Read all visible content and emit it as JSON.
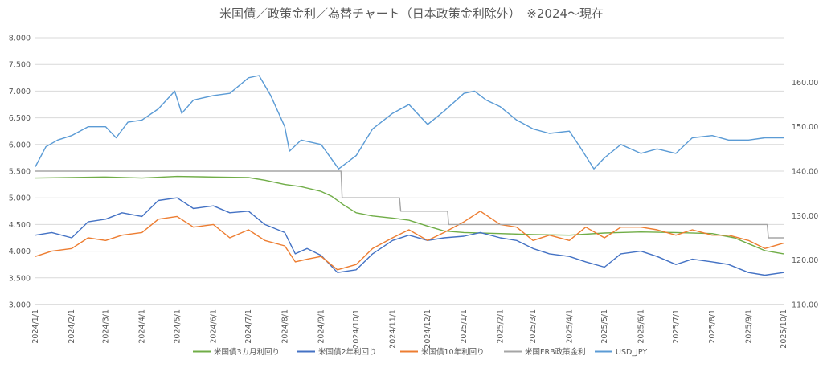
{
  "chart_data": {
    "type": "line",
    "title": "米国債／政策金利／為替チャート（日本政策金利除外）　※2024～現在",
    "x_ticks": [
      "2024/1/1",
      "2024/2/1",
      "2024/3/1",
      "2024/4/1",
      "2024/5/1",
      "2024/6/1",
      "2024/7/1",
      "2024/8/1",
      "2024/9/1",
      "2024/10/1",
      "2024/11/1",
      "2024/12/1",
      "2025/1/1",
      "2025/2/1",
      "2025/3/1",
      "2025/4/1",
      "2025/5/1",
      "2025/6/1",
      "2025/7/1",
      "2025/8/1",
      "2025/9/1",
      "2025/10/1"
    ],
    "y_left": {
      "min": 3.0,
      "max": 8.0,
      "ticks": [
        "3.000",
        "3.500",
        "4.000",
        "4.500",
        "5.000",
        "5.500",
        "6.000",
        "6.500",
        "7.000",
        "7.500",
        "8.000"
      ]
    },
    "y_right": {
      "min": 110.0,
      "max": 170.0,
      "ticks": [
        "110.00",
        "120.00",
        "130.00",
        "140.00",
        "150.00",
        "160.00"
      ]
    },
    "legend_position": "bottom",
    "series": [
      {
        "name": "米国債3カ月利回り",
        "axis": "left",
        "color": "#70ad47",
        "x": [
          "2024/1/1",
          "2024/2/1",
          "2024/3/1",
          "2024/4/1",
          "2024/5/1",
          "2024/6/1",
          "2024/7/1",
          "2024/7/15",
          "2024/8/1",
          "2024/8/15",
          "2024/9/1",
          "2024/9/10",
          "2024/9/20",
          "2024/10/1",
          "2024/10/15",
          "2024/11/1",
          "2024/11/15",
          "2024/12/1",
          "2024/12/15",
          "2025/1/1",
          "2025/2/1",
          "2025/3/1",
          "2025/4/1",
          "2025/5/1",
          "2025/6/1",
          "2025/7/1",
          "2025/8/1",
          "2025/8/20",
          "2025/9/1",
          "2025/9/15",
          "2025/10/1"
        ],
        "values": [
          5.37,
          5.38,
          5.39,
          5.37,
          5.4,
          5.39,
          5.38,
          5.33,
          5.25,
          5.21,
          5.12,
          5.03,
          4.87,
          4.72,
          4.66,
          4.62,
          4.58,
          4.47,
          4.38,
          4.35,
          4.33,
          4.31,
          4.3,
          4.34,
          4.36,
          4.35,
          4.33,
          4.25,
          4.14,
          4.01,
          3.95
        ]
      },
      {
        "name": "米国債2年利回り",
        "axis": "left",
        "color": "#4472c4",
        "x": [
          "2024/1/1",
          "2024/1/15",
          "2024/2/1",
          "2024/2/15",
          "2024/3/1",
          "2024/3/15",
          "2024/4/1",
          "2024/4/15",
          "2024/5/1",
          "2024/5/15",
          "2024/6/1",
          "2024/6/15",
          "2024/7/1",
          "2024/7/15",
          "2024/8/1",
          "2024/8/10",
          "2024/8/20",
          "2024/9/1",
          "2024/9/15",
          "2024/10/1",
          "2024/10/15",
          "2024/11/1",
          "2024/11/15",
          "2024/12/1",
          "2024/12/15",
          "2025/1/1",
          "2025/1/15",
          "2025/2/1",
          "2025/2/15",
          "2025/3/1",
          "2025/3/15",
          "2025/4/1",
          "2025/4/15",
          "2025/5/1",
          "2025/5/15",
          "2025/6/1",
          "2025/6/15",
          "2025/7/1",
          "2025/7/15",
          "2025/8/1",
          "2025/8/15",
          "2025/9/1",
          "2025/9/15",
          "2025/10/1"
        ],
        "values": [
          4.3,
          4.35,
          4.25,
          4.55,
          4.6,
          4.72,
          4.65,
          4.95,
          5.0,
          4.8,
          4.85,
          4.72,
          4.75,
          4.5,
          4.35,
          3.95,
          4.05,
          3.92,
          3.6,
          3.65,
          3.95,
          4.2,
          4.3,
          4.2,
          4.25,
          4.28,
          4.35,
          4.25,
          4.2,
          4.05,
          3.95,
          3.9,
          3.8,
          3.7,
          3.95,
          4.0,
          3.9,
          3.75,
          3.85,
          3.8,
          3.75,
          3.6,
          3.55,
          3.6
        ]
      },
      {
        "name": "米国債10年利回り",
        "axis": "left",
        "color": "#ed7d31",
        "x": [
          "2024/1/1",
          "2024/1/15",
          "2024/2/1",
          "2024/2/15",
          "2024/3/1",
          "2024/3/15",
          "2024/4/1",
          "2024/4/15",
          "2024/5/1",
          "2024/5/15",
          "2024/6/1",
          "2024/6/15",
          "2024/7/1",
          "2024/7/15",
          "2024/8/1",
          "2024/8/10",
          "2024/8/20",
          "2024/9/1",
          "2024/9/15",
          "2024/10/1",
          "2024/10/15",
          "2024/11/1",
          "2024/11/15",
          "2024/12/1",
          "2024/12/15",
          "2025/1/1",
          "2025/1/15",
          "2025/2/1",
          "2025/2/15",
          "2025/3/1",
          "2025/3/15",
          "2025/4/1",
          "2025/4/15",
          "2025/5/1",
          "2025/5/15",
          "2025/6/1",
          "2025/6/15",
          "2025/7/1",
          "2025/7/15",
          "2025/8/1",
          "2025/8/15",
          "2025/9/1",
          "2025/9/15",
          "2025/10/1"
        ],
        "values": [
          3.9,
          4.0,
          4.05,
          4.25,
          4.2,
          4.3,
          4.35,
          4.6,
          4.65,
          4.45,
          4.5,
          4.25,
          4.4,
          4.2,
          4.1,
          3.8,
          3.85,
          3.9,
          3.65,
          3.75,
          4.05,
          4.25,
          4.4,
          4.2,
          4.35,
          4.55,
          4.75,
          4.5,
          4.45,
          4.2,
          4.3,
          4.2,
          4.45,
          4.25,
          4.45,
          4.45,
          4.4,
          4.3,
          4.4,
          4.3,
          4.3,
          4.2,
          4.05,
          4.15
        ]
      },
      {
        "name": "米国FRB政策金利",
        "axis": "left",
        "color": "#a5a5a5",
        "x": [
          "2024/1/1",
          "2024/9/18",
          "2024/9/19",
          "2024/11/7",
          "2024/11/8",
          "2024/12/18",
          "2024/12/19",
          "2025/9/17",
          "2025/9/18",
          "2025/10/1"
        ],
        "values": [
          5.5,
          5.5,
          5.0,
          5.0,
          4.75,
          4.75,
          4.5,
          4.5,
          4.25,
          4.25
        ]
      },
      {
        "name": "USD_JPY",
        "axis": "right",
        "color": "#5b9bd5",
        "x": [
          "2024/1/1",
          "2024/1/10",
          "2024/1/20",
          "2024/2/1",
          "2024/2/15",
          "2024/3/1",
          "2024/3/10",
          "2024/3/20",
          "2024/4/1",
          "2024/4/15",
          "2024/4/29",
          "2024/5/5",
          "2024/5/15",
          "2024/6/1",
          "2024/6/15",
          "2024/7/1",
          "2024/7/10",
          "2024/7/20",
          "2024/8/1",
          "2024/8/5",
          "2024/8/15",
          "2024/9/1",
          "2024/9/16",
          "2024/10/1",
          "2024/10/15",
          "2024/11/1",
          "2024/11/15",
          "2024/12/1",
          "2024/12/15",
          "2025/1/1",
          "2025/1/10",
          "2025/1/20",
          "2025/2/1",
          "2025/2/15",
          "2025/3/1",
          "2025/3/15",
          "2025/4/1",
          "2025/4/10",
          "2025/4/22",
          "2025/5/1",
          "2025/5/15",
          "2025/6/1",
          "2025/6/15",
          "2025/7/1",
          "2025/7/15",
          "2025/8/1",
          "2025/8/15",
          "2025/9/1",
          "2025/9/15",
          "2025/10/1"
        ],
        "values": [
          141.0,
          145.5,
          147.0,
          148.0,
          150.0,
          150.0,
          147.5,
          151.0,
          151.5,
          154.0,
          158.0,
          153.0,
          156.0,
          157.0,
          157.5,
          161.0,
          161.5,
          157.0,
          150.0,
          144.5,
          147.0,
          146.0,
          140.5,
          143.5,
          149.5,
          153.0,
          155.0,
          150.5,
          153.5,
          157.5,
          158.0,
          156.0,
          154.5,
          151.5,
          149.5,
          148.5,
          149.0,
          145.5,
          140.5,
          143.0,
          146.0,
          144.0,
          145.0,
          144.0,
          147.5,
          148.0,
          147.0,
          147.0,
          147.5,
          147.5
        ]
      }
    ]
  }
}
